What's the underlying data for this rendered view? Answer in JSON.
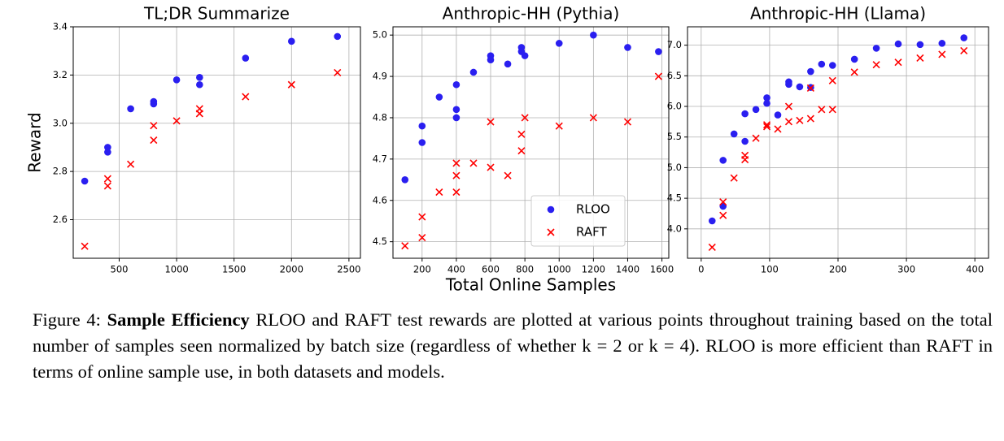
{
  "chart_data": [
    {
      "type": "scatter",
      "title": "TL;DR Summarize",
      "ylabel": "Reward",
      "xlim": [
        100,
        2600
      ],
      "xticks": [
        500,
        1000,
        1500,
        2000,
        2500
      ],
      "ylim": [
        2.44,
        3.4
      ],
      "yticks": [
        2.6,
        2.8,
        {
          "value": 3.0,
          "label": "3.0"
        },
        3.2,
        3.4
      ],
      "grid": true,
      "series": [
        {
          "color": "#2a1ff0",
          "marker": "circle",
          "x": [
            200,
            400,
            400,
            600,
            800,
            800,
            1000,
            1200,
            1200,
            1600,
            2000,
            2400
          ],
          "values": [
            2.76,
            2.9,
            2.88,
            3.06,
            3.09,
            3.08,
            3.18,
            3.19,
            3.16,
            3.27,
            3.34,
            3.36
          ]
        },
        {
          "color": "#ff0000",
          "marker": "x",
          "x": [
            200,
            400,
            400,
            600,
            800,
            800,
            1000,
            1200,
            1200,
            1600,
            2000,
            2400
          ],
          "values": [
            2.49,
            2.77,
            2.74,
            2.83,
            2.99,
            2.93,
            3.01,
            3.06,
            3.04,
            3.11,
            3.16,
            3.21
          ]
        }
      ]
    },
    {
      "type": "scatter",
      "title": "Anthropic-HH (Pythia)",
      "xlabel": "Total Online Samples",
      "xlim": [
        30,
        1640
      ],
      "xticks": [
        200,
        400,
        600,
        800,
        1000,
        1200,
        1400,
        1600
      ],
      "ylim": [
        4.46,
        5.02
      ],
      "yticks": [
        4.5,
        4.6,
        4.7,
        4.8,
        4.9,
        {
          "value": 5.0,
          "label": "5.0"
        }
      ],
      "grid": true,
      "legend": "lower right",
      "series": [
        {
          "name": "RLOO",
          "color": "#2a1ff0",
          "marker": "circle",
          "x": [
            100,
            200,
            200,
            300,
            400,
            400,
            400,
            500,
            600,
            600,
            700,
            780,
            780,
            800,
            1000,
            1200,
            1400,
            1580
          ],
          "values": [
            4.65,
            4.78,
            4.74,
            4.85,
            4.88,
            4.82,
            4.8,
            4.91,
            4.95,
            4.94,
            4.93,
            4.97,
            4.96,
            4.95,
            4.98,
            5.0,
            4.97,
            4.96
          ]
        },
        {
          "name": "RAFT",
          "color": "#ff0000",
          "marker": "x",
          "x": [
            100,
            200,
            200,
            300,
            400,
            400,
            400,
            500,
            600,
            600,
            700,
            780,
            780,
            800,
            1000,
            1200,
            1400,
            1580
          ],
          "values": [
            4.49,
            4.56,
            4.51,
            4.62,
            4.69,
            4.66,
            4.62,
            4.69,
            4.79,
            4.68,
            4.66,
            4.76,
            4.72,
            4.8,
            4.78,
            4.8,
            4.79,
            4.9
          ]
        }
      ]
    },
    {
      "type": "scatter",
      "title": "Anthropic-HH (Llama)",
      "xlim": [
        -20,
        420
      ],
      "xticks": [
        0,
        100,
        200,
        300,
        400
      ],
      "ylim": [
        3.52,
        7.3
      ],
      "yticks": [
        {
          "value": 4.0,
          "label": "4.0"
        },
        4.5,
        {
          "value": 5.0,
          "label": "5.0"
        },
        5.5,
        {
          "value": 6.0,
          "label": "6.0"
        },
        6.5,
        {
          "value": 7.0,
          "label": "7.0"
        }
      ],
      "grid": true,
      "series": [
        {
          "color": "#2a1ff0",
          "marker": "circle",
          "x": [
            16,
            32,
            32,
            48,
            64,
            64,
            80,
            96,
            96,
            112,
            128,
            128,
            144,
            160,
            160,
            176,
            192,
            224,
            256,
            288,
            320,
            352,
            384
          ],
          "values": [
            4.13,
            4.37,
            5.12,
            5.55,
            5.88,
            5.43,
            5.95,
            6.14,
            6.05,
            5.86,
            6.4,
            6.36,
            6.32,
            6.57,
            6.31,
            6.69,
            6.67,
            6.77,
            6.95,
            7.02,
            7.01,
            7.03,
            7.12
          ]
        },
        {
          "color": "#ff0000",
          "marker": "x",
          "x": [
            16,
            32,
            32,
            48,
            64,
            64,
            80,
            96,
            96,
            112,
            128,
            128,
            144,
            160,
            160,
            176,
            192,
            192,
            224,
            256,
            288,
            320,
            352,
            384
          ],
          "values": [
            3.7,
            4.44,
            4.22,
            4.83,
            5.2,
            5.13,
            5.48,
            5.7,
            5.67,
            5.63,
            6.0,
            5.75,
            5.77,
            5.8,
            6.3,
            5.95,
            6.42,
            5.95,
            6.56,
            6.68,
            6.72,
            6.79,
            6.85,
            6.91
          ]
        }
      ]
    }
  ],
  "caption": {
    "label": "Figure 4:",
    "heading": "Sample Efficiency",
    "text": "RLOO and RAFT test rewards are plotted at various points throughout training based on the total number of samples seen normalized by batch size (regardless of whether k = 2 or k = 4). RLOO is more efficient than RAFT in terms of online sample use, in both datasets and models."
  }
}
